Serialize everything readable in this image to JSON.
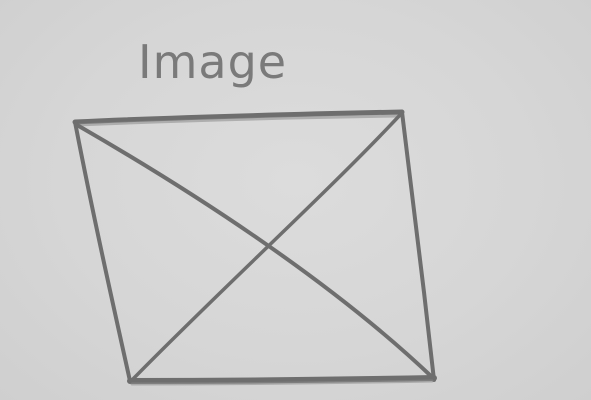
{
  "sketch": {
    "label": "Image",
    "ink_color": "#6e6e6e",
    "paper_color": "#d6d6d6",
    "placeholder_icon": "crossed-rectangle-icon"
  }
}
